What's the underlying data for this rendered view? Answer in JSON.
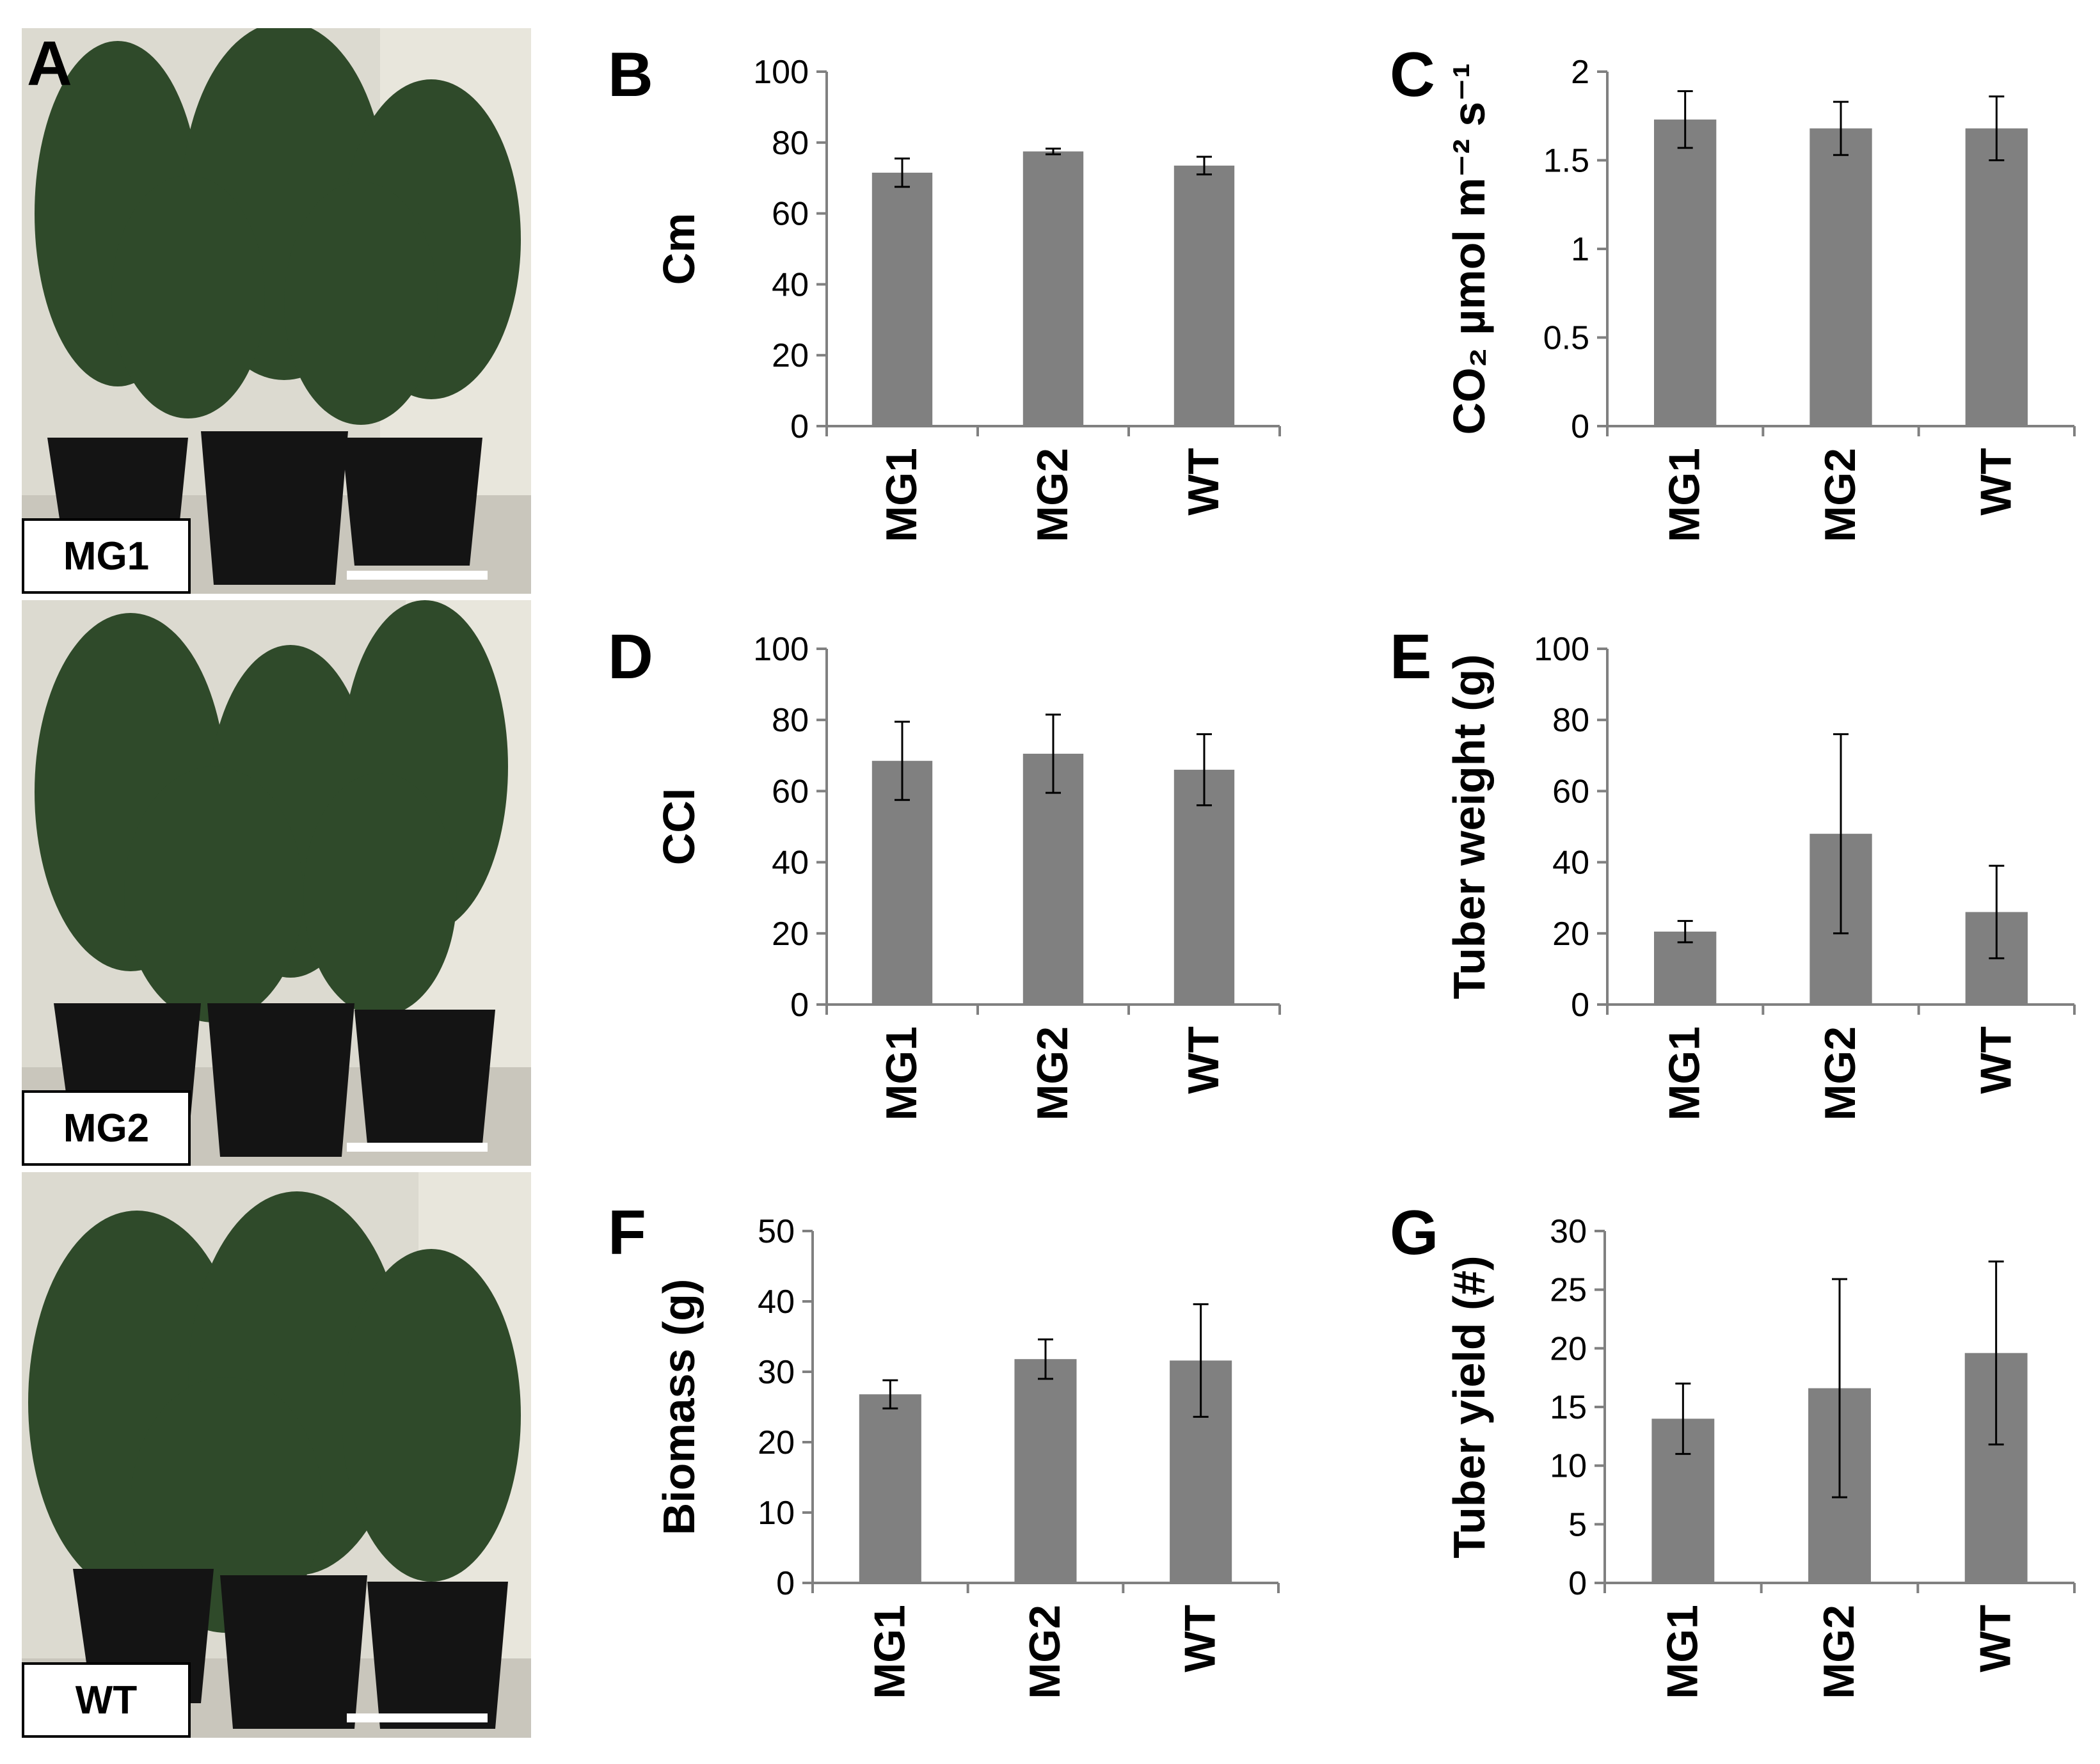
{
  "figure": {
    "panel_a": {
      "letter": "A",
      "photos": [
        {
          "genotype": "MG1"
        },
        {
          "genotype": "MG2"
        },
        {
          "genotype": "WT"
        }
      ]
    }
  },
  "chart_data": [
    {
      "panel": "B",
      "type": "bar",
      "categories": [
        "MG1",
        "MG2",
        "WT"
      ],
      "values": [
        71.5,
        77.5,
        73.5
      ],
      "errors": [
        4,
        0.8,
        2.5
      ],
      "ylim": [
        0,
        100
      ],
      "ticks": [
        0,
        20,
        40,
        60,
        80,
        100
      ],
      "tick_labels": [
        "0",
        "20",
        "40",
        "60",
        "80",
        "100"
      ],
      "ylabel": "Cm",
      "grid": false
    },
    {
      "panel": "C",
      "type": "bar",
      "categories": [
        "MG1",
        "MG2",
        "WT"
      ],
      "values": [
        1.73,
        1.68,
        1.68
      ],
      "errors": [
        0.16,
        0.15,
        0.18
      ],
      "ylim": [
        0,
        2
      ],
      "ticks": [
        0,
        0.5,
        1,
        1.5,
        2
      ],
      "tick_labels": [
        "0",
        "0.5",
        "1",
        "1.5",
        "2"
      ],
      "ylabel": "CO₂ µmol m⁻² s⁻¹",
      "grid": false
    },
    {
      "panel": "D",
      "type": "bar",
      "categories": [
        "MG1",
        "MG2",
        "WT"
      ],
      "values": [
        68.5,
        70.5,
        66
      ],
      "errors": [
        11,
        11,
        10
      ],
      "ylim": [
        0,
        100
      ],
      "ticks": [
        0,
        20,
        40,
        60,
        80,
        100
      ],
      "tick_labels": [
        "0",
        "20",
        "40",
        "60",
        "80",
        "100"
      ],
      "ylabel": "CCI",
      "grid": false
    },
    {
      "panel": "E",
      "type": "bar",
      "categories": [
        "MG1",
        "MG2",
        "WT"
      ],
      "values": [
        20.5,
        48,
        26
      ],
      "errors": [
        3,
        28,
        13
      ],
      "ylim": [
        0,
        100
      ],
      "ticks": [
        0,
        20,
        40,
        60,
        80,
        100
      ],
      "tick_labels": [
        "0",
        "20",
        "40",
        "60",
        "80",
        "100"
      ],
      "ylabel": "Tuber weight (g)",
      "grid": false
    },
    {
      "panel": "F",
      "type": "bar",
      "categories": [
        "MG1",
        "MG2",
        "WT"
      ],
      "values": [
        26.8,
        31.8,
        31.6
      ],
      "errors": [
        2,
        2.8,
        8
      ],
      "ylim": [
        0,
        50
      ],
      "ticks": [
        0,
        10,
        20,
        30,
        40,
        50
      ],
      "tick_labels": [
        "0",
        "10",
        "20",
        "30",
        "40",
        "50"
      ],
      "ylabel": "Biomass (g)",
      "grid": false
    },
    {
      "panel": "G",
      "type": "bar",
      "categories": [
        "MG1",
        "MG2",
        "WT"
      ],
      "values": [
        14,
        16.6,
        19.6
      ],
      "errors": [
        3,
        9.3,
        7.8
      ],
      "ylim": [
        0,
        30
      ],
      "ticks": [
        0,
        5,
        10,
        15,
        20,
        25,
        30
      ],
      "tick_labels": [
        "0",
        "5",
        "10",
        "15",
        "20",
        "25",
        "30"
      ],
      "ylabel": "Tuber yield (#)",
      "grid": false
    }
  ],
  "style": {
    "bar_color": "#808080",
    "axis_color": "#808080",
    "text_color": "#000000",
    "error_bar_color": "#000000",
    "photo_background": "#dcdad0",
    "pot_color": "#141414",
    "foliage_color": "#2f4a2a",
    "scalebar_color": "#ffffff"
  }
}
